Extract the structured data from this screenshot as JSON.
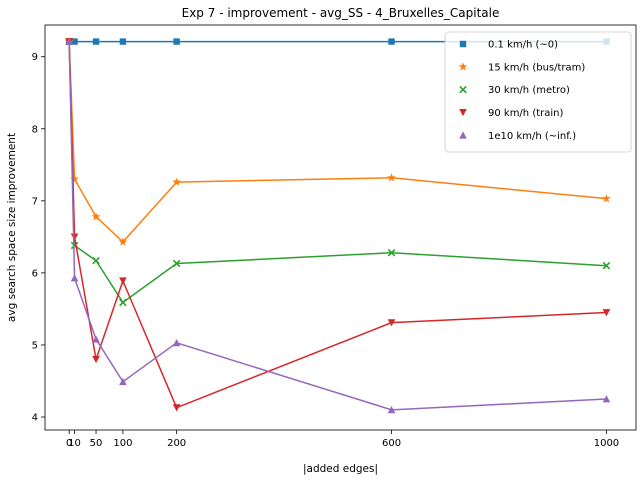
{
  "chart_data": {
    "type": "line",
    "title": "Exp 7 - improvement - avg_SS - 4_Bruxelles_Capitale",
    "xlabel": "|added edges|",
    "ylabel": "avg search space size improvement",
    "x": [
      0,
      10,
      50,
      100,
      200,
      600,
      1000
    ],
    "xticks": [
      0,
      10,
      50,
      100,
      200,
      600,
      1000
    ],
    "xtick_labels": [
      "0",
      "10",
      "50",
      "100",
      "200",
      "600",
      "1000"
    ],
    "yticks": [
      4,
      5,
      6,
      7,
      8,
      9
    ],
    "ytick_labels": [
      "4",
      "5",
      "6",
      "7",
      "8",
      "9"
    ],
    "xlim": [
      -45,
      1055
    ],
    "ylim": [
      3.82,
      9.44
    ],
    "grid": false,
    "legend_position": "top-right",
    "series": [
      {
        "name": "0.1 km/h (~0)",
        "color": "#1f77b4",
        "marker": "square",
        "values": [
          9.21,
          9.21,
          9.21,
          9.21,
          9.21,
          9.21,
          9.21
        ]
      },
      {
        "name": "15 km/h (bus/tram)",
        "color": "#ff7f0e",
        "marker": "star",
        "values": [
          9.21,
          7.3,
          6.78,
          6.43,
          7.26,
          7.32,
          7.03
        ]
      },
      {
        "name": "30 km/h (metro)",
        "color": "#2ca02c",
        "marker": "x",
        "values": [
          9.21,
          6.38,
          6.17,
          5.59,
          6.13,
          6.28,
          6.1
        ]
      },
      {
        "name": "90 km/h (train)",
        "color": "#d62728",
        "marker": "triangle-down",
        "values": [
          9.21,
          6.5,
          4.8,
          5.89,
          4.13,
          5.31,
          5.45
        ]
      },
      {
        "name": "1e10 km/h (~inf.)",
        "color": "#9467bd",
        "marker": "triangle-up",
        "values": [
          9.21,
          5.93,
          5.08,
          4.49,
          5.03,
          4.1,
          4.25
        ]
      }
    ]
  }
}
